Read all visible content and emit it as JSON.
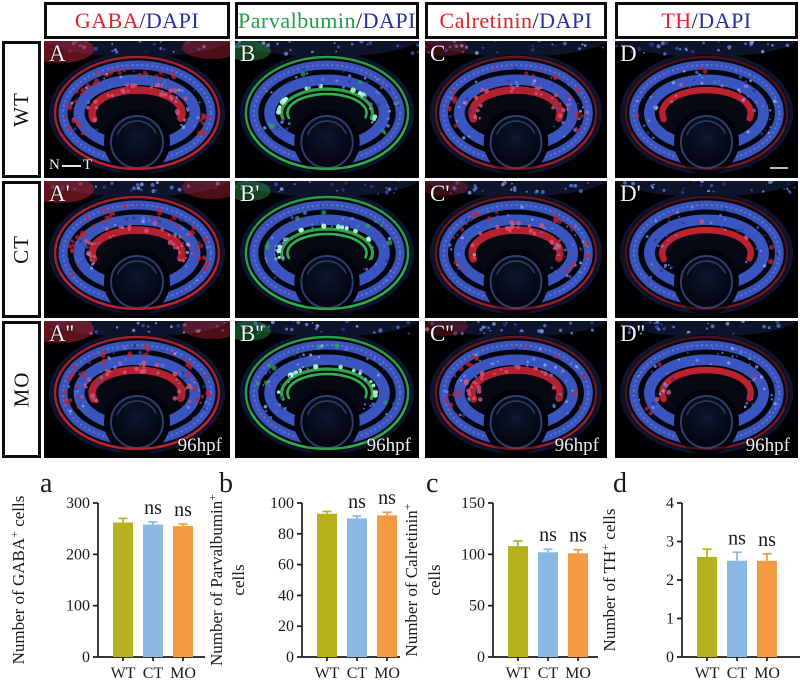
{
  "figure": {
    "columns": [
      {
        "header_parts": [
          {
            "text": "GABA",
            "color": "#e3202a"
          },
          {
            "text": "/",
            "color": "#231f20"
          },
          {
            "text": "DAPI",
            "color": "#2531a6"
          }
        ],
        "stain_name": "GABA",
        "stain_color": "#c22433",
        "mode": "red-heavy"
      },
      {
        "header_parts": [
          {
            "text": "Parvalbumin",
            "color": "#1ea047"
          },
          {
            "text": "/",
            "color": "#231f20"
          },
          {
            "text": "DAPI",
            "color": "#2531a6"
          }
        ],
        "stain_name": "Parvalbumin",
        "stain_color": "#2fae4a",
        "mode": "green"
      },
      {
        "header_parts": [
          {
            "text": "Calretinin",
            "color": "#e3202a"
          },
          {
            "text": "/",
            "color": "#231f20"
          },
          {
            "text": "DAPI",
            "color": "#2531a6"
          }
        ],
        "stain_name": "Calretinin",
        "stain_color": "#c22433",
        "mode": "red-mid"
      },
      {
        "header_parts": [
          {
            "text": "TH",
            "color": "#e3202a"
          },
          {
            "text": "/",
            "color": "#231f20"
          },
          {
            "text": "DAPI",
            "color": "#2531a6"
          }
        ],
        "stain_name": "TH",
        "stain_color": "#cf2332",
        "mode": "red-sparse"
      }
    ],
    "rows": [
      {
        "label": "WT"
      },
      {
        "label": "CT"
      },
      {
        "label": "MO"
      }
    ],
    "panel_letters": [
      [
        "A",
        "B",
        "C",
        "D"
      ],
      [
        "A'",
        "B'",
        "C'",
        "D'"
      ],
      [
        "A''",
        "B''",
        "C''",
        "D''"
      ]
    ],
    "annotations": {
      "orientation_left": "N",
      "orientation_right": "T",
      "timepoint": "96hpf",
      "dapi_color": "#3b55c4"
    }
  },
  "chart_common": {
    "categories": [
      "WT",
      "CT",
      "MO"
    ],
    "bar_colors": [
      "#b4b11d",
      "#8cb8e4",
      "#f39a43"
    ],
    "ns_label": "ns",
    "axis_color": "#1a1a1a"
  },
  "chart_data": [
    {
      "type": "bar",
      "letter": "a",
      "ylabel_lines": [
        "Number of GABA^+^ cells"
      ],
      "categories": [
        "WT",
        "CT",
        "MO"
      ],
      "values": [
        262,
        258,
        255
      ],
      "errors": [
        8,
        5,
        4
      ],
      "ns_flags": [
        false,
        true,
        true
      ],
      "ylim": [
        0,
        300
      ],
      "yticks": [
        0,
        100,
        200,
        300
      ]
    },
    {
      "type": "bar",
      "letter": "b",
      "ylabel_lines": [
        "Number of Parvalbumin^+^",
        "cells"
      ],
      "categories": [
        "WT",
        "CT",
        "MO"
      ],
      "values": [
        93,
        90,
        92
      ],
      "errors": [
        1.5,
        1.5,
        2
      ],
      "ns_flags": [
        false,
        true,
        true
      ],
      "ylim": [
        0,
        100
      ],
      "yticks": [
        0,
        20,
        40,
        60,
        80,
        100
      ]
    },
    {
      "type": "bar",
      "letter": "c",
      "ylabel_lines": [
        "Number of Calretinin^+^",
        "cells"
      ],
      "categories": [
        "WT",
        "CT",
        "MO"
      ],
      "values": [
        108,
        102,
        101
      ],
      "errors": [
        5,
        3,
        3.5
      ],
      "ns_flags": [
        false,
        true,
        true
      ],
      "ylim": [
        0,
        150
      ],
      "yticks": [
        0,
        50,
        100,
        150
      ]
    },
    {
      "type": "bar",
      "letter": "d",
      "ylabel_lines": [
        "Number of TH^+^ cells"
      ],
      "categories": [
        "WT",
        "CT",
        "MO"
      ],
      "values": [
        2.6,
        2.5,
        2.5
      ],
      "errors": [
        0.2,
        0.22,
        0.18
      ],
      "ns_flags": [
        false,
        true,
        true
      ],
      "ylim": [
        0,
        4
      ],
      "yticks": [
        0,
        1,
        2,
        3,
        4
      ]
    }
  ]
}
